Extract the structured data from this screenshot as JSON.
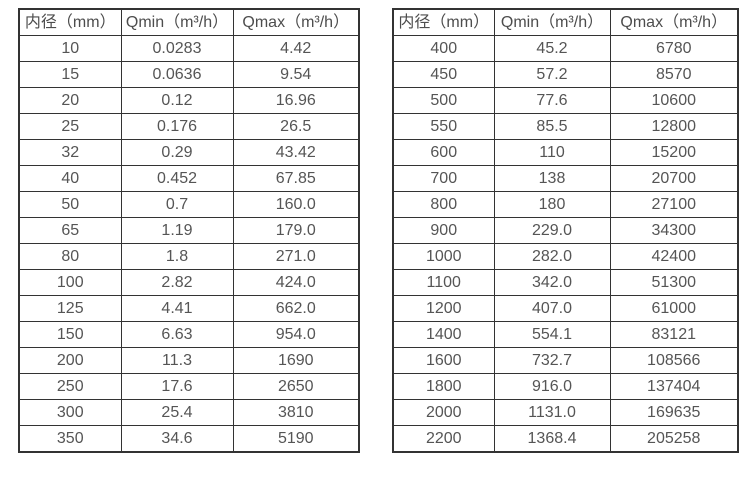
{
  "colors": {
    "background": "#ffffff",
    "border": "#333333",
    "text": "#555555"
  },
  "chart_data": [
    {
      "type": "table",
      "name": "flow-rate-table-small-diameters",
      "columns": [
        "内径（mm）",
        "Qmin（m³/h）",
        "Qmax（m³/h）"
      ],
      "rows": [
        [
          "10",
          "0.0283",
          "4.42"
        ],
        [
          "15",
          "0.0636",
          "9.54"
        ],
        [
          "20",
          "0.12",
          "16.96"
        ],
        [
          "25",
          "0.176",
          "26.5"
        ],
        [
          "32",
          "0.29",
          "43.42"
        ],
        [
          "40",
          "0.452",
          "67.85"
        ],
        [
          "50",
          "0.7",
          "160.0"
        ],
        [
          "65",
          "1.19",
          "179.0"
        ],
        [
          "80",
          "1.8",
          "271.0"
        ],
        [
          "100",
          "2.82",
          "424.0"
        ],
        [
          "125",
          "4.41",
          "662.0"
        ],
        [
          "150",
          "6.63",
          "954.0"
        ],
        [
          "200",
          "11.3",
          "1690"
        ],
        [
          "250",
          "17.6",
          "2650"
        ],
        [
          "300",
          "25.4",
          "3810"
        ],
        [
          "350",
          "34.6",
          "5190"
        ]
      ]
    },
    {
      "type": "table",
      "name": "flow-rate-table-large-diameters",
      "columns": [
        "内径（mm）",
        "Qmin（m³/h）",
        "Qmax（m³/h）"
      ],
      "rows": [
        [
          "400",
          "45.2",
          "6780"
        ],
        [
          "450",
          "57.2",
          "8570"
        ],
        [
          "500",
          "77.6",
          "10600"
        ],
        [
          "550",
          "85.5",
          "12800"
        ],
        [
          "600",
          "110",
          "15200"
        ],
        [
          "700",
          "138",
          "20700"
        ],
        [
          "800",
          "180",
          "27100"
        ],
        [
          "900",
          "229.0",
          "34300"
        ],
        [
          "1000",
          "282.0",
          "42400"
        ],
        [
          "1100",
          "342.0",
          "51300"
        ],
        [
          "1200",
          "407.0",
          "61000"
        ],
        [
          "1400",
          "554.1",
          "83121"
        ],
        [
          "1600",
          "732.7",
          "108566"
        ],
        [
          "1800",
          "916.0",
          "137404"
        ],
        [
          "2000",
          "1131.0",
          "169635"
        ],
        [
          "2200",
          "1368.4",
          "205258"
        ]
      ]
    }
  ]
}
